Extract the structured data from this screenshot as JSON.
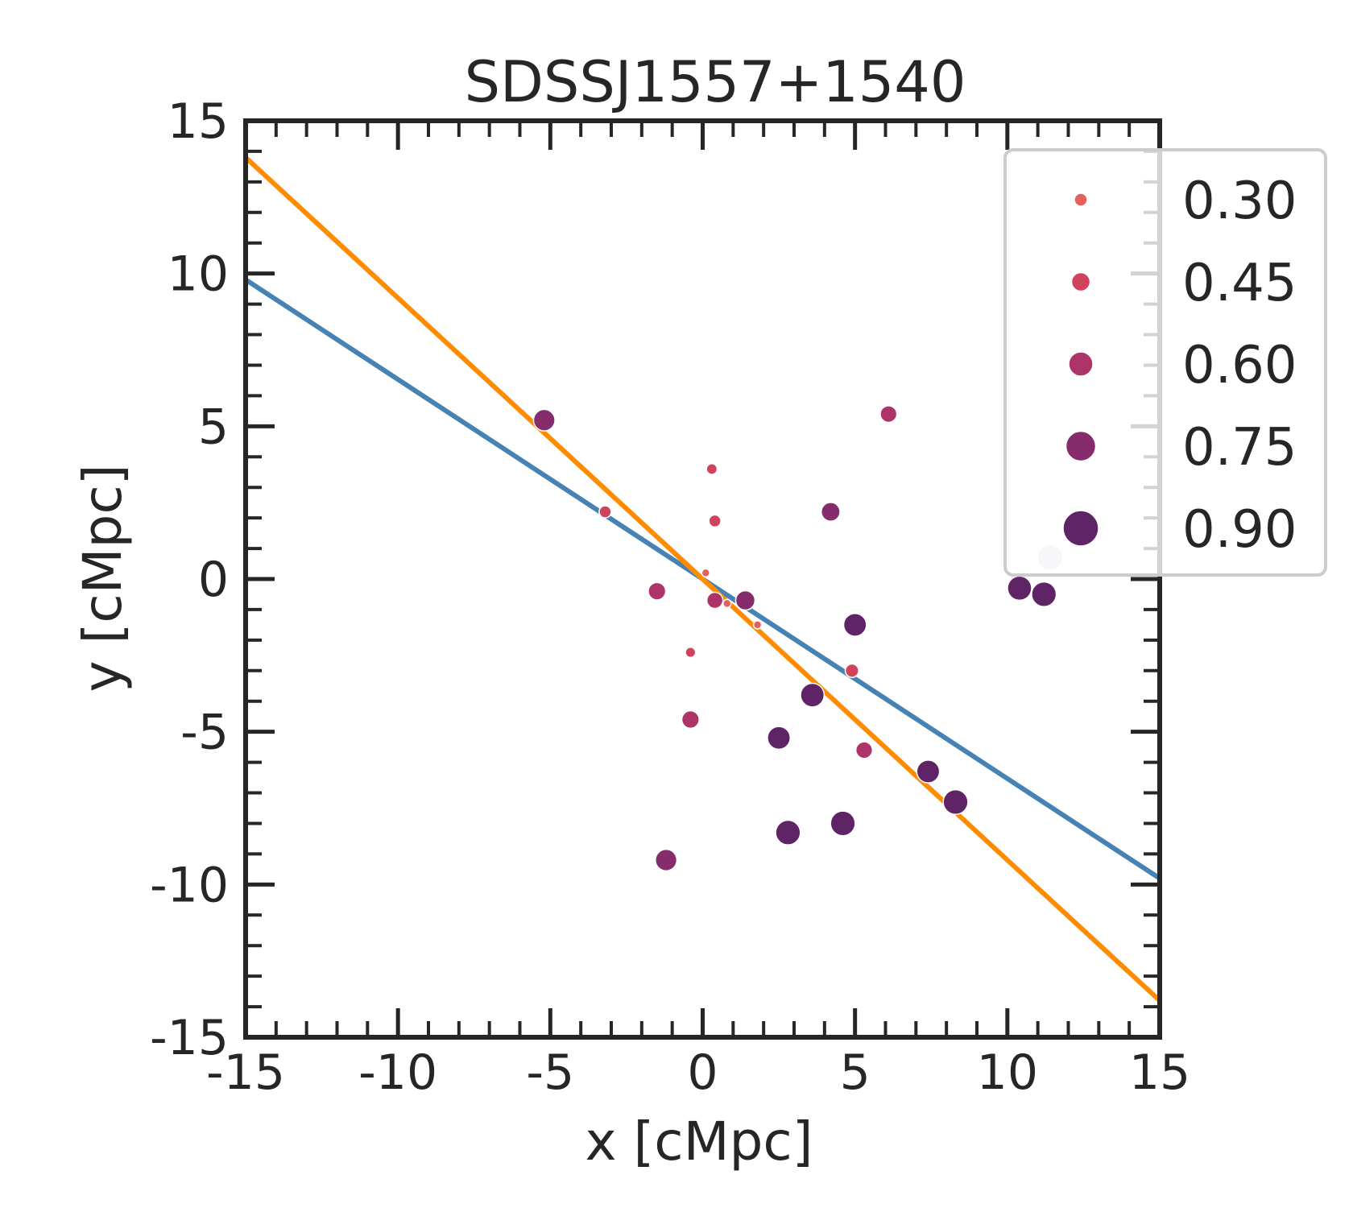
{
  "chart_data": {
    "type": "scatter",
    "title": "SDSSJ1557+1540",
    "xlabel": "x [cMpc]",
    "ylabel": "y [cMpc]",
    "xlim": [
      -15,
      15
    ],
    "ylim": [
      -15,
      15
    ],
    "xticks": [
      -15,
      -10,
      -5,
      0,
      5,
      10,
      15
    ],
    "yticks": [
      -15,
      -10,
      -5,
      0,
      5,
      10,
      15
    ],
    "xtick_labels": [
      "-15",
      "-10",
      "-5",
      "0",
      "5",
      "10",
      "15"
    ],
    "ytick_labels": [
      "-15",
      "-10",
      "-5",
      "0",
      "5",
      "10",
      "15"
    ],
    "grid": false,
    "legend": {
      "placement": "upper right, outside axes edge",
      "entries": [
        {
          "label": "0.30",
          "value": 0.3,
          "color": "#e4605a"
        },
        {
          "label": "0.45",
          "value": 0.45,
          "color": "#d0435d"
        },
        {
          "label": "0.60",
          "value": 0.6,
          "color": "#ad3468"
        },
        {
          "label": "0.75",
          "value": 0.75,
          "color": "#862b6c"
        },
        {
          "label": "0.90",
          "value": 0.9,
          "color": "#5f2465"
        }
      ]
    },
    "lines": [
      {
        "name": "blue fit",
        "color": "#4682b4",
        "x": [
          -15,
          15
        ],
        "y": [
          9.8,
          -9.8
        ]
      },
      {
        "name": "orange fit",
        "color": "#ff8c00",
        "x": [
          -15,
          15
        ],
        "y": [
          13.8,
          -13.8
        ]
      }
    ],
    "points": [
      {
        "x": -5.2,
        "y": 5.2,
        "v": 0.8
      },
      {
        "x": -3.2,
        "y": 2.2,
        "v": 0.45
      },
      {
        "x": 0.3,
        "y": 3.6,
        "v": 0.4
      },
      {
        "x": 0.4,
        "y": 1.9,
        "v": 0.45
      },
      {
        "x": 0.1,
        "y": 0.2,
        "v": 0.3
      },
      {
        "x": -1.5,
        "y": -0.4,
        "v": 0.65
      },
      {
        "x": 0.4,
        "y": -0.7,
        "v": 0.6
      },
      {
        "x": 1.4,
        "y": -0.7,
        "v": 0.72
      },
      {
        "x": 0.8,
        "y": -0.8,
        "v": 0.3
      },
      {
        "x": 1.8,
        "y": -1.5,
        "v": 0.3
      },
      {
        "x": -0.4,
        "y": -2.4,
        "v": 0.38
      },
      {
        "x": -0.4,
        "y": -4.6,
        "v": 0.65
      },
      {
        "x": 4.2,
        "y": 2.2,
        "v": 0.7
      },
      {
        "x": 6.1,
        "y": 5.4,
        "v": 0.62
      },
      {
        "x": 5.0,
        "y": -1.5,
        "v": 0.85
      },
      {
        "x": 4.9,
        "y": -3.0,
        "v": 0.5
      },
      {
        "x": 3.6,
        "y": -3.8,
        "v": 0.88
      },
      {
        "x": 2.5,
        "y": -5.2,
        "v": 0.85
      },
      {
        "x": 5.3,
        "y": -5.6,
        "v": 0.62
      },
      {
        "x": 7.4,
        "y": -6.3,
        "v": 0.85
      },
      {
        "x": 8.3,
        "y": -7.3,
        "v": 0.92
      },
      {
        "x": 2.8,
        "y": -8.3,
        "v": 0.92
      },
      {
        "x": 4.6,
        "y": -8.0,
        "v": 0.92
      },
      {
        "x": -1.2,
        "y": -9.2,
        "v": 0.8
      },
      {
        "x": 10.4,
        "y": -0.3,
        "v": 0.9
      },
      {
        "x": 11.2,
        "y": -0.5,
        "v": 0.92
      },
      {
        "x": 11.4,
        "y": 0.7,
        "v": 0.95
      }
    ]
  }
}
